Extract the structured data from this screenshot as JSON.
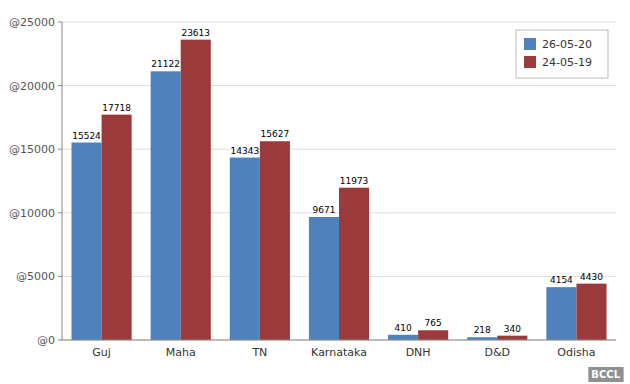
{
  "chart_data": {
    "type": "bar",
    "categories": [
      "Guj",
      "Maha",
      "TN",
      "Karnataka",
      "DNH",
      "D&D",
      "Odisha"
    ],
    "series": [
      {
        "name": "26-05-20",
        "color": "#4F81BD",
        "values": [
          15524,
          21122,
          14343,
          9671,
          410,
          218,
          4154
        ]
      },
      {
        "name": "24-05-19",
        "color": "#9B3A3A",
        "values": [
          17718,
          23613,
          15627,
          11973,
          765,
          340,
          4430
        ]
      }
    ],
    "ylim": [
      0,
      25000
    ],
    "yticks": [
      {
        "value": 0,
        "label": "@0"
      },
      {
        "value": 5000,
        "label": "@5000"
      },
      {
        "value": 10000,
        "label": "@10000"
      },
      {
        "value": 15000,
        "label": "@15000"
      },
      {
        "value": 20000,
        "label": "@20000"
      },
      {
        "value": 25000,
        "label": "@25000"
      }
    ],
    "grid": true,
    "legend": "upper right",
    "data_labels": true,
    "annotations": [
      "BCCL"
    ]
  }
}
